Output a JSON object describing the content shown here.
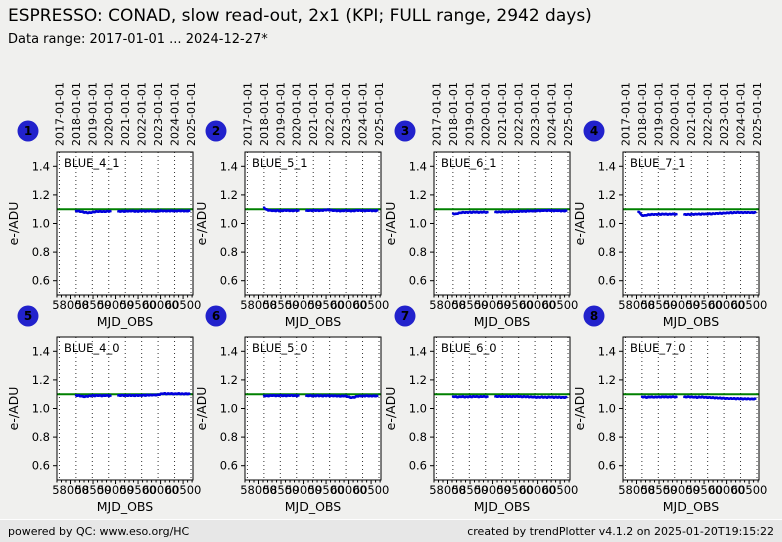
{
  "header": {
    "title": "ESPRESSO: CONAD, slow read-out, 2x1 (KPI; FULL range, 2942 days)",
    "subtitle": "Data range: 2017-01-01 ... 2024-12-27*"
  },
  "footer": {
    "left": "powered by QC: www.eso.org/HC",
    "right": "created by trendPlotter v4.1.2 on 2025-01-20T19:15:22"
  },
  "colors": {
    "page_background": "#f0f0ee",
    "footer_background": "#e7e7e7",
    "axes_background": "#ffffff",
    "frame": "#000000",
    "grid": "#333333",
    "reference_line": "#008000",
    "points": "#0000dd",
    "badge_fill": "#2222cc",
    "badge_text": "#ffffff"
  },
  "chart_data": {
    "type": "scatter",
    "layout": "2 rows x 4 columns of subplots",
    "xlabel": "MJD_OBS",
    "ylabel": "e-/ADU",
    "xlim": [
      57700,
      60720
    ],
    "ylim": [
      0.5,
      1.5
    ],
    "xticks": [
      58000,
      58500,
      59000,
      59500,
      60000,
      60500
    ],
    "x_minor_tick_step": 100,
    "yticks": [
      0.6,
      0.8,
      1.0,
      1.2,
      1.4
    ],
    "grid": "vertical dotted lines at year boundaries",
    "legend_position": "none",
    "reference_line_value": 1.1,
    "data_gap_note": "no data between MJD ~58890 and ~59060",
    "year_gridlines": [
      {
        "label": "2017-01-01",
        "mjd": 57754
      },
      {
        "label": "2018-01-01",
        "mjd": 58119
      },
      {
        "label": "2019-01-01",
        "mjd": 58484
      },
      {
        "label": "2020-01-01",
        "mjd": 58849
      },
      {
        "label": "2021-01-01",
        "mjd": 59215
      },
      {
        "label": "2022-01-01",
        "mjd": 59580
      },
      {
        "label": "2023-01-01",
        "mjd": 59945
      },
      {
        "label": "2024-01-01",
        "mjd": 60310
      },
      {
        "label": "2025-01-01",
        "mjd": 60676
      }
    ],
    "x": [
      58040,
      58080,
      58120,
      58180,
      58240,
      58300,
      58360,
      58420,
      58480,
      58540,
      58600,
      58660,
      58720,
      58780,
      58840,
      58890,
      59060,
      59120,
      59180,
      59240,
      59300,
      59360,
      59420,
      59480,
      59540,
      59600,
      59660,
      59720,
      59780,
      59840,
      59900,
      59960,
      60020,
      60080,
      60140,
      60200,
      60260,
      60320,
      60380,
      60440,
      60500,
      60560,
      60640
    ],
    "series": [
      {
        "name": "BLUE_4_1",
        "badge": 1,
        "y": [
          null,
          null,
          1.088,
          1.086,
          1.083,
          1.079,
          1.076,
          1.075,
          1.078,
          1.082,
          1.084,
          1.085,
          1.083,
          1.084,
          1.086,
          1.085,
          1.084,
          1.086,
          1.085,
          1.087,
          1.086,
          1.088,
          1.086,
          1.085,
          1.087,
          1.088,
          1.086,
          1.087,
          1.088,
          1.086,
          1.085,
          1.087,
          1.089,
          1.088,
          1.087,
          1.088,
          1.089,
          1.087,
          1.088,
          1.089,
          1.088,
          1.087,
          1.088
        ]
      },
      {
        "name": "BLUE_5_1",
        "badge": 2,
        "y": [
          null,
          null,
          1.112,
          1.096,
          1.092,
          1.09,
          1.089,
          1.091,
          1.088,
          1.09,
          1.092,
          1.091,
          1.089,
          1.09,
          1.091,
          1.09,
          1.089,
          1.091,
          1.09,
          1.092,
          1.091,
          1.09,
          1.092,
          1.094,
          1.096,
          1.093,
          1.091,
          1.09,
          1.089,
          1.088,
          1.09,
          1.091,
          1.089,
          1.088,
          1.09,
          1.092,
          1.091,
          1.09,
          1.089,
          1.091,
          1.09,
          1.089,
          1.09
        ]
      },
      {
        "name": "BLUE_6_1",
        "badge": 3,
        "y": [
          null,
          null,
          1.07,
          1.066,
          1.072,
          1.076,
          1.078,
          1.077,
          1.079,
          1.078,
          1.08,
          1.079,
          1.078,
          1.08,
          1.079,
          1.078,
          1.079,
          1.081,
          1.08,
          1.082,
          1.081,
          1.083,
          1.082,
          1.084,
          1.083,
          1.085,
          1.086,
          1.085,
          1.087,
          1.088,
          1.087,
          1.089,
          1.09,
          1.089,
          1.091,
          1.09,
          1.092,
          1.09,
          1.089,
          1.09,
          1.089,
          1.088,
          1.089
        ]
      },
      {
        "name": "BLUE_7_1",
        "badge": 4,
        "y": [
          1.082,
          1.07,
          1.058,
          1.055,
          1.06,
          1.062,
          1.064,
          1.063,
          1.065,
          1.064,
          1.066,
          1.065,
          1.064,
          1.066,
          1.065,
          1.064,
          1.062,
          1.064,
          1.063,
          1.065,
          1.064,
          1.066,
          1.065,
          1.067,
          1.066,
          1.068,
          1.067,
          1.069,
          1.07,
          1.072,
          1.071,
          1.073,
          1.074,
          1.076,
          1.075,
          1.077,
          1.078,
          1.077,
          1.076,
          1.078,
          1.077,
          1.076,
          1.077
        ]
      },
      {
        "name": "BLUE_4_0",
        "badge": 5,
        "y": [
          null,
          null,
          1.092,
          1.09,
          1.086,
          1.083,
          1.085,
          1.088,
          1.09,
          1.089,
          1.091,
          1.09,
          1.089,
          1.091,
          1.09,
          1.089,
          1.09,
          1.092,
          1.091,
          1.09,
          1.092,
          1.091,
          1.09,
          1.092,
          1.091,
          1.093,
          1.092,
          1.094,
          1.093,
          1.095,
          1.094,
          1.096,
          1.103,
          1.105,
          1.102,
          1.104,
          1.103,
          1.102,
          1.104,
          1.103,
          1.102,
          1.103,
          1.102
        ]
      },
      {
        "name": "BLUE_5_0",
        "badge": 6,
        "y": [
          null,
          null,
          1.09,
          1.088,
          1.089,
          1.091,
          1.09,
          1.089,
          1.091,
          1.09,
          1.089,
          1.09,
          1.091,
          1.09,
          1.089,
          1.09,
          1.088,
          1.09,
          1.089,
          1.088,
          1.09,
          1.089,
          1.088,
          1.089,
          1.09,
          1.088,
          1.089,
          1.088,
          1.087,
          1.086,
          1.088,
          1.087,
          1.078,
          1.076,
          1.08,
          1.086,
          1.088,
          1.087,
          1.089,
          1.088,
          1.087,
          1.088,
          1.087
        ]
      },
      {
        "name": "BLUE_6_0",
        "badge": 7,
        "y": [
          null,
          null,
          1.084,
          1.082,
          1.08,
          1.083,
          1.082,
          1.081,
          1.083,
          1.082,
          1.084,
          1.083,
          1.082,
          1.084,
          1.083,
          1.082,
          1.083,
          1.085,
          1.084,
          1.083,
          1.085,
          1.084,
          1.083,
          1.084,
          1.085,
          1.083,
          1.082,
          1.083,
          1.082,
          1.081,
          1.08,
          1.079,
          1.078,
          1.08,
          1.079,
          1.078,
          1.08,
          1.079,
          1.078,
          1.079,
          1.078,
          1.077,
          1.078
        ]
      },
      {
        "name": "BLUE_7_0",
        "badge": 8,
        "y": [
          null,
          null,
          1.082,
          1.08,
          1.078,
          1.081,
          1.08,
          1.079,
          1.081,
          1.08,
          1.082,
          1.081,
          1.08,
          1.082,
          1.081,
          1.08,
          1.08,
          1.082,
          1.081,
          1.08,
          1.079,
          1.078,
          1.08,
          1.079,
          1.078,
          1.077,
          1.076,
          1.075,
          1.074,
          1.073,
          1.072,
          1.071,
          1.07,
          1.069,
          1.07,
          1.068,
          1.069,
          1.068,
          1.067,
          1.068,
          1.067,
          1.066,
          1.067
        ]
      }
    ]
  }
}
